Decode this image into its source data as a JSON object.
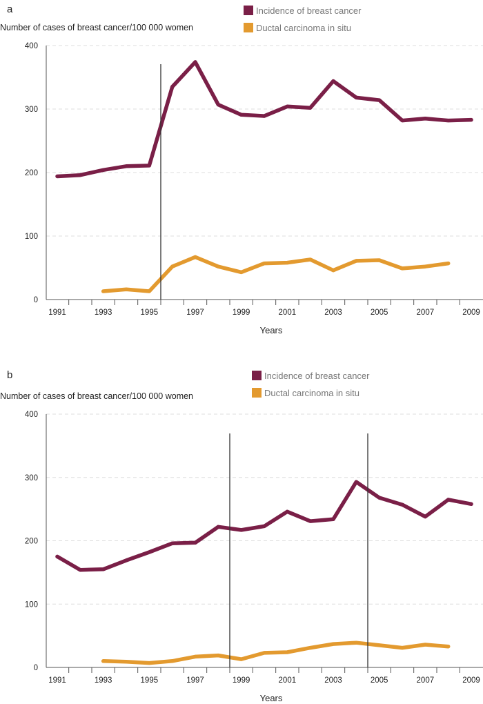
{
  "chart_data": [
    {
      "panel_label": "a",
      "type": "line",
      "ylabel": "Number of cases of breast cancer/100 000 women",
      "xlabel": "Years",
      "ylim": [
        0,
        400
      ],
      "yticks": [
        "0",
        "100",
        "200",
        "300",
        "400"
      ],
      "xlim": [
        1991,
        2009
      ],
      "xtick_labels": [
        "1991",
        "1993",
        "1995",
        "1997",
        "1999",
        "2001",
        "2003",
        "2005",
        "2007",
        "2009"
      ],
      "grid": "horizontal dashed",
      "legend_position": "top-right",
      "vertical_markers": [
        1995.5
      ],
      "series": [
        {
          "name": "Incidence of breast cancer",
          "color": "#7a1f47",
          "x": [
            1991,
            1992,
            1993,
            1994,
            1995,
            1996,
            1997,
            1998,
            1999,
            2000,
            2001,
            2002,
            2003,
            2004,
            2005,
            2006,
            2007,
            2008,
            2009
          ],
          "values": [
            194,
            196,
            204,
            210,
            211,
            335,
            374,
            307,
            291,
            289,
            304,
            302,
            344,
            318,
            314,
            282,
            285,
            282,
            283
          ]
        },
        {
          "name": "Ductal carcinoma in situ",
          "color": "#e39a2f",
          "x": [
            1993,
            1994,
            1995,
            1996,
            1997,
            1998,
            1999,
            2000,
            2001,
            2002,
            2003,
            2004,
            2005,
            2006,
            2007,
            2008
          ],
          "values": [
            13,
            16,
            13,
            52,
            67,
            52,
            43,
            57,
            58,
            63,
            46,
            61,
            62,
            49,
            52,
            57
          ]
        }
      ]
    },
    {
      "panel_label": "b",
      "type": "line",
      "ylabel": "Number of cases of breast cancer/100 000 women",
      "xlabel": "Years",
      "ylim": [
        0,
        400
      ],
      "yticks": [
        "0",
        "100",
        "200",
        "300",
        "400"
      ],
      "xlim": [
        1991,
        2009
      ],
      "xtick_labels": [
        "1991",
        "1993",
        "1995",
        "1997",
        "1999",
        "2001",
        "2003",
        "2005",
        "2007",
        "2009"
      ],
      "grid": "horizontal dashed",
      "legend_position": "top-right",
      "vertical_markers": [
        1998.5,
        2004.5
      ],
      "series": [
        {
          "name": "Incidence of breast cancer",
          "color": "#7a1f47",
          "x": [
            1991,
            1992,
            1993,
            1994,
            1995,
            1996,
            1997,
            1998,
            1999,
            2000,
            2001,
            2002,
            2003,
            2004,
            2005,
            2006,
            2007,
            2008,
            2009
          ],
          "values": [
            175,
            154,
            155,
            169,
            182,
            196,
            197,
            222,
            217,
            223,
            246,
            231,
            234,
            293,
            268,
            257,
            238,
            265,
            258
          ]
        },
        {
          "name": "Ductal carcinoma in situ",
          "color": "#e39a2f",
          "x": [
            1993,
            1994,
            1995,
            1996,
            1997,
            1998,
            1999,
            2000,
            2001,
            2002,
            2003,
            2004,
            2005,
            2006,
            2007,
            2008
          ],
          "values": [
            10,
            9,
            7,
            10,
            17,
            19,
            13,
            23,
            24,
            31,
            37,
            39,
            35,
            31,
            36,
            33
          ]
        }
      ]
    }
  ]
}
